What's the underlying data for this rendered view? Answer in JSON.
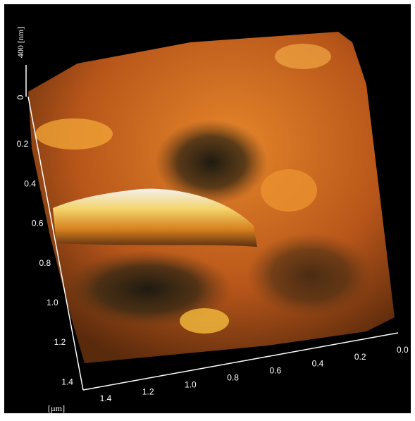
{
  "z_axis": {
    "label": "400 [nm]",
    "ticks": [
      "0"
    ]
  },
  "left_axis": {
    "ticks": [
      "0.2",
      "0.4",
      "0.6",
      "0.8",
      "1.0",
      "1.2",
      "1.4"
    ]
  },
  "bottom_axis": {
    "ticks": [
      "1.4",
      "1.2",
      "1.0",
      "0.8",
      "0.6",
      "0.4",
      "0.2",
      "0.0"
    ],
    "unit": "[µm]"
  }
}
